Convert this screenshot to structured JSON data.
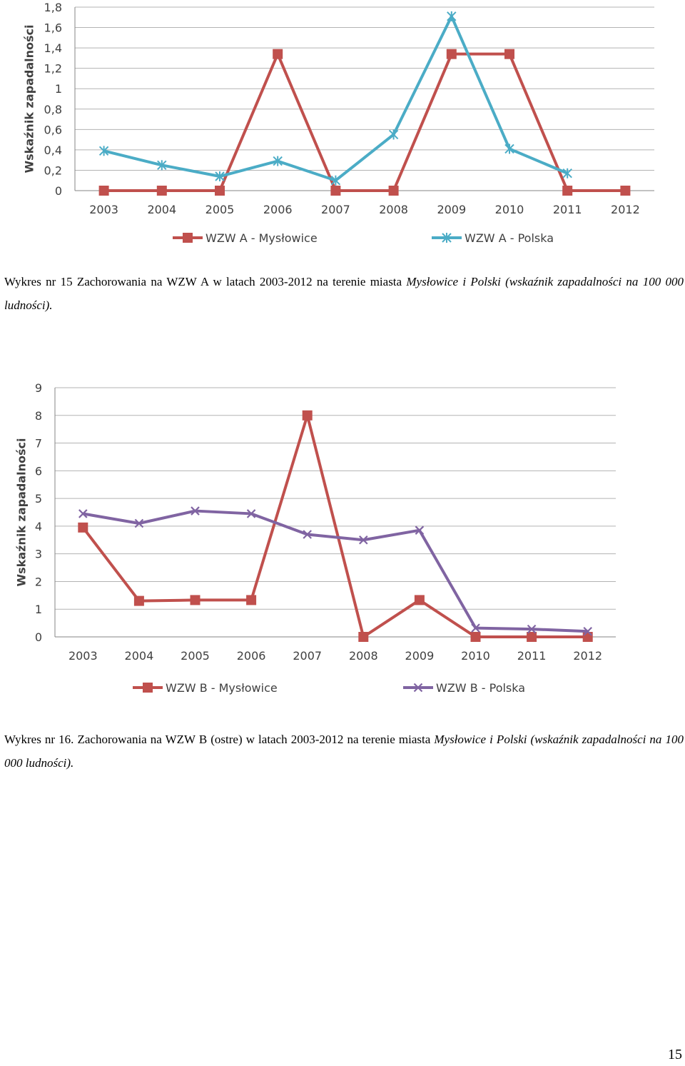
{
  "charts": [
    {
      "chart_data": {
        "type": "line",
        "ylabel": "Wskaźnik zapadalności",
        "categories": [
          "2003",
          "2004",
          "2005",
          "2006",
          "2007",
          "2008",
          "2009",
          "2010",
          "2011",
          "2012"
        ],
        "yticks": [
          "0",
          "0,2",
          "0,4",
          "0,6",
          "0,8",
          "1",
          "1,2",
          "1,4",
          "1,6",
          "1,8"
        ],
        "ylim": [
          0,
          1.8
        ],
        "grid": true,
        "legend_position": "bottom",
        "series": [
          {
            "name": "WZW A - Mysłowice",
            "color": "#c0504d",
            "marker": "square",
            "values": [
              0,
              0,
              0,
              1.34,
              0,
              0,
              1.34,
              1.34,
              0,
              0
            ]
          },
          {
            "name": "WZW A - Polska",
            "color": "#4bacc6",
            "marker": "star",
            "values": [
              0.39,
              0.25,
              0.14,
              0.29,
              0.1,
              0.55,
              1.71,
              0.41,
              0.17,
              null
            ]
          }
        ]
      }
    },
    {
      "chart_data": {
        "type": "line",
        "ylabel": "Wskaźnik zapadalności",
        "categories": [
          "2003",
          "2004",
          "2005",
          "2006",
          "2007",
          "2008",
          "2009",
          "2010",
          "2011",
          "2012"
        ],
        "yticks": [
          "0",
          "1",
          "2",
          "3",
          "4",
          "5",
          "6",
          "7",
          "8",
          "9"
        ],
        "ylim": [
          0,
          9
        ],
        "grid": true,
        "legend_position": "bottom",
        "series": [
          {
            "name": "WZW B - Mysłowice",
            "color": "#c0504d",
            "marker": "square",
            "values": [
              3.95,
              1.3,
              1.33,
              1.33,
              8.0,
              0,
              1.33,
              0,
              0,
              0
            ]
          },
          {
            "name": "WZW B - Polska",
            "color": "#8064a2",
            "marker": "x",
            "values": [
              4.45,
              4.1,
              4.55,
              4.45,
              3.7,
              3.5,
              3.85,
              0.32,
              0.28,
              0.2
            ]
          }
        ]
      }
    }
  ],
  "captions": {
    "c1_plain": "Wykres nr 15 Zachorowania na WZW A w latach 2003-2012 na terenie miasta ",
    "c1_italic": "Mysłowice i Polski (wskaźnik zapadalności na 100 000 ludności).",
    "c2_plain": "Wykres nr 16. Zachorowania na WZW B (ostre) w latach 2003-2012 na terenie miasta ",
    "c2_italic": "Mysłowice i Polski (wskaźnik zapadalności na 100 000 ludności)."
  },
  "page_number": "15"
}
